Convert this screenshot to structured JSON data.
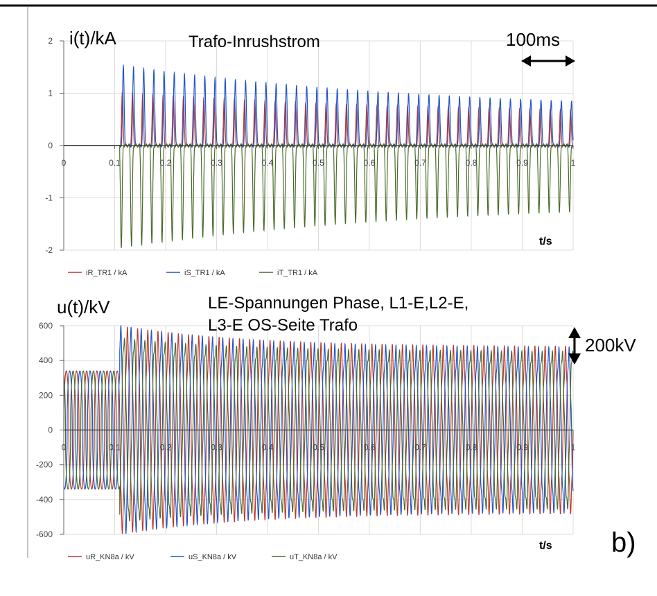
{
  "figure": {
    "panel_label": "b)",
    "colors": {
      "R": "#c0392b",
      "S": "#2255cc",
      "T": "#4b6b2a"
    }
  },
  "chart_data": [
    {
      "type": "line",
      "title": "Trafo-Inrushstrom",
      "ylabel": "i(t)/kA",
      "xlabel": "t/s",
      "xlim": [
        0,
        1
      ],
      "ylim": [
        -2,
        2
      ],
      "xticks": [
        "0",
        "0.1",
        "0.2",
        "0.3",
        "0.4",
        "0.5",
        "0.6",
        "0.7",
        "0.8",
        "0.9",
        "1"
      ],
      "yticks": [
        "2",
        "1",
        "0",
        "-1",
        "-2"
      ],
      "grid": true,
      "legend_position": "bottom-left",
      "annotation": "100ms",
      "series": [
        {
          "name": "iR_TR1 / kA",
          "color": "#c0392b",
          "description_values": {
            "switch_on_s": 0.11,
            "peak_initial_kA": 1.0,
            "peak_end_kA": 0.55
          }
        },
        {
          "name": "iS_TR1 / kA",
          "color": "#2255cc",
          "description_values": {
            "switch_on_s": 0.11,
            "peak_initial_kA": 1.55,
            "peak_end_kA": 0.65
          }
        },
        {
          "name": "iT_TR1 / kA",
          "color": "#4b6b2a",
          "description_values": {
            "switch_on_s": 0.11,
            "peak_initial_kA": -1.95,
            "peak_end_kA": -1.05
          }
        }
      ]
    },
    {
      "type": "line",
      "title": "LE-Spannungen Phase,  L1-E,L2-E,",
      "title2": "L3-E OS-Seite Trafo",
      "ylabel": "u(t)/kV",
      "xlabel": "t/s",
      "xlim": [
        0,
        1
      ],
      "ylim": [
        -600,
        600
      ],
      "xticks": [
        "0",
        "0.1",
        "0.2",
        "0.3",
        "0.4",
        "0.5",
        "0.6",
        "0.7",
        "0.8",
        "0.9",
        "1"
      ],
      "yticks": [
        "600",
        "400",
        "200",
        "0",
        "-200",
        "-400",
        "-600"
      ],
      "grid": true,
      "legend_position": "bottom-left",
      "annotation": "200kV",
      "series": [
        {
          "name": "uR_KN8a / kV",
          "color": "#c0392b",
          "description_values": {
            "amplitude_before_kV": 340,
            "amplitude_after_kV": 560
          }
        },
        {
          "name": "uS_KN8a / kV",
          "color": "#2255cc",
          "description_values": {
            "amplitude_before_kV": 340,
            "amplitude_after_kV": 570
          }
        },
        {
          "name": "uT_KN8a / kV",
          "color": "#4b6b2a",
          "description_values": {
            "amplitude_before_kV": 340,
            "amplitude_after_kV": 520
          }
        }
      ]
    }
  ]
}
